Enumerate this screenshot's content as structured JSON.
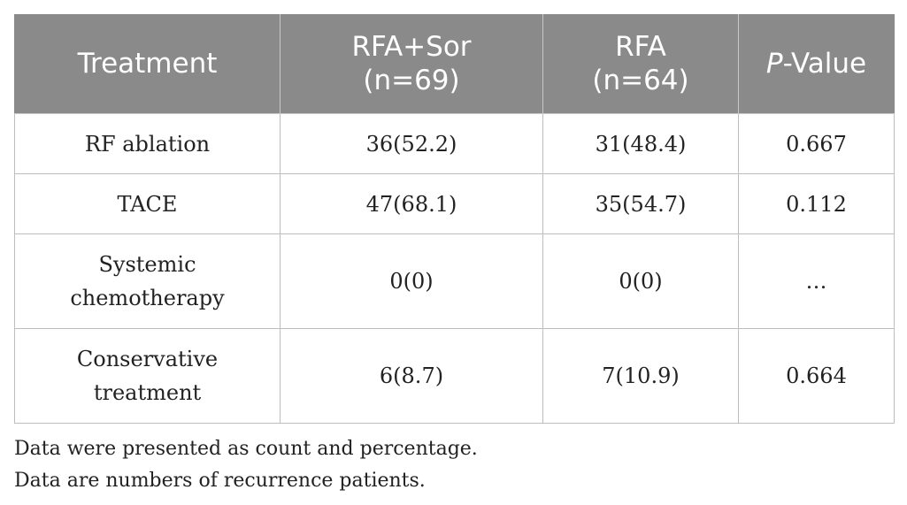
{
  "table": {
    "headers": {
      "treatment": "Treatment",
      "rfa_sor_line1": "RFA+Sor",
      "rfa_sor_line2": "(n=69)",
      "rfa_line1": "RFA",
      "rfa_line2": "(n=64)",
      "p_value_italic": "P",
      "p_value_rest": "-Value"
    },
    "rows": [
      {
        "treatment_line1": "RF ablation",
        "treatment_line2": "",
        "rfa_sor": "36(52.2)",
        "rfa": "31(48.4)",
        "p_value": "0.667"
      },
      {
        "treatment_line1": "TACE",
        "treatment_line2": "",
        "rfa_sor": "47(68.1)",
        "rfa": "35(54.7)",
        "p_value": "0.112"
      },
      {
        "treatment_line1": "Systemic",
        "treatment_line2": "chemotherapy",
        "rfa_sor": "0(0)",
        "rfa": "0(0)",
        "p_value": "…"
      },
      {
        "treatment_line1": "Conservative",
        "treatment_line2": "treatment",
        "rfa_sor": "6(8.7)",
        "rfa": "7(10.9)",
        "p_value": "0.664"
      }
    ]
  },
  "footnotes": [
    "Data were presented as count and percentage.",
    "Data are numbers of recurrence patients."
  ]
}
